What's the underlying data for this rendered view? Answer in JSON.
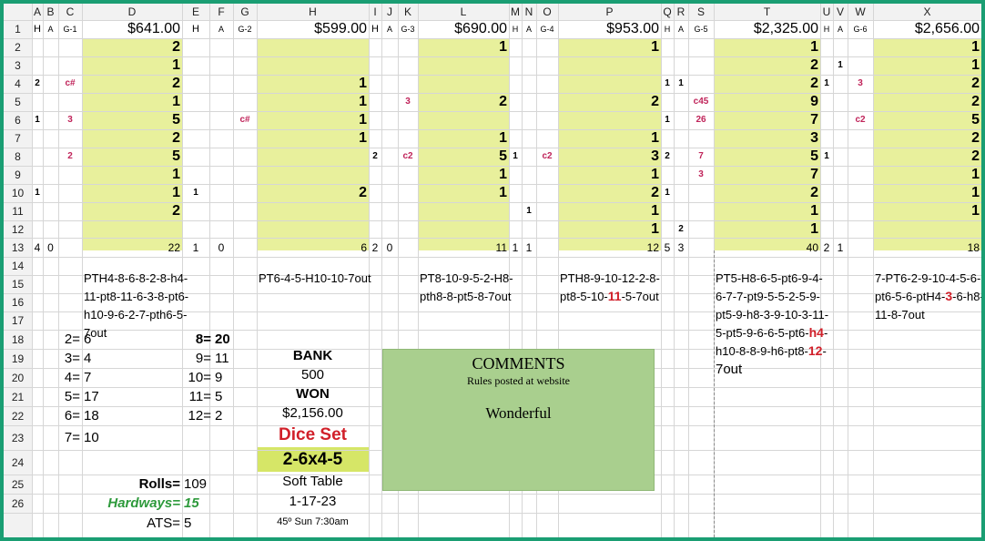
{
  "col_headers": [
    "A",
    "B",
    "C",
    "D",
    "E",
    "F",
    "G",
    "H",
    "I",
    "J",
    "K",
    "L",
    "M",
    "N",
    "O",
    "P",
    "Q",
    "R",
    "S",
    "T",
    "U",
    "V",
    "W",
    "X"
  ],
  "row_numbers": [
    "1",
    "2",
    "3",
    "4",
    "5",
    "6",
    "7",
    "8",
    "9",
    "10",
    "11",
    "12",
    "13",
    "14",
    "15",
    "16",
    "17",
    "18",
    "19",
    "20",
    "21",
    "22",
    "23",
    "24",
    "25",
    "26"
  ],
  "row1": {
    "h": "H",
    "a": "A",
    "g1": "G-1",
    "d": "$641.00",
    "e": "H",
    "f": "A",
    "g": "G-2",
    "hcol": "$599.00",
    "i": "H",
    "j": "A",
    "k": "G-3",
    "l": "$690.00",
    "m": "H",
    "n": "A",
    "o": "G-4",
    "p": "$953.00",
    "q": "H",
    "r": "A",
    "s": "G-5",
    "t": "$2,325.00",
    "u": "H",
    "v": "A",
    "w": "G-6",
    "x": "$2,656.00"
  },
  "cells": {
    "A4": "2",
    "C4": "c#",
    "A6": "1",
    "C6": "3",
    "C8": "2",
    "A10": "1",
    "D2": "2",
    "D3": "1",
    "D4": "2",
    "D5": "1",
    "D6": "5",
    "D7": "2",
    "D8": "5",
    "D9": "1",
    "D10": "1",
    "D11": "2",
    "E10": "1",
    "G6": "c#",
    "H4": "1",
    "H5": "1",
    "H6": "1",
    "H7": "1",
    "H10": "2",
    "I8": "2",
    "K5": "3",
    "K8": "c2",
    "L2": "1",
    "L5": "2",
    "L7": "1",
    "L8": "5",
    "L9": "1",
    "L10": "1",
    "M8": "1",
    "N11": "1",
    "O8": "c2",
    "P2": "1",
    "P5": "2",
    "P7": "1",
    "P8": "3",
    "P9": "1",
    "P10": "2",
    "P11": "1",
    "P12": "1",
    "Q4": "1",
    "R4": "1",
    "Q6": "1",
    "Q8": "2",
    "Q10": "1",
    "R12": "2",
    "S5": "c45",
    "S6": "26",
    "S8": "7",
    "S9": "3",
    "T2": "1",
    "T3": "2",
    "T4": "2",
    "T5": "9",
    "T6": "7",
    "T7": "3",
    "T8": "5",
    "T9": "7",
    "T10": "2",
    "T11": "1",
    "T12": "1",
    "U4": "1",
    "U8": "1",
    "V3": "1",
    "W4": "3",
    "W6": "c2",
    "X2": "1",
    "X3": "1",
    "X4": "2",
    "X5": "2",
    "X6": "5",
    "X7": "2",
    "X8": "2",
    "X9": "1",
    "X10": "1",
    "X11": "1"
  },
  "row13": {
    "A": "4",
    "B": "0",
    "D": "22",
    "E": "1",
    "F": "0",
    "H": "6",
    "I": "2",
    "J": "0",
    "L": "11",
    "M": "1",
    "N": "1",
    "P": "12",
    "Q": "5",
    "R": "3",
    "T": "40",
    "U": "2",
    "V": "1",
    "X": "18"
  },
  "sequences": {
    "g1": [
      "PTH4-8-6-8-2-8-h4-",
      "11-pt8-11-6-3-8-pt6-",
      "h10-9-6-2-7-pth6-5-",
      "7out"
    ],
    "g2": [
      "PT6-4-5-H10-10-7out"
    ],
    "g3": [
      "PT8-10-9-5-2-H8-",
      "pth8-8-pt5-8-7out"
    ],
    "g4_l1": "PTH8-9-10-12-2-8-",
    "g4_l2a": "pt8-5-10-",
    "g4_l2b": "11",
    "g4_l2c": "-5-7out",
    "g5_l1": "PT5-H8-6-5-pt6-9-4-",
    "g5_l2": "6-7-7-pt9-5-5-2-5-9-",
    "g5_l3": "pt5-9-h8-3-9-10-3-11-",
    "g5_l4a": "5-pt5-9-6-6-5-pt6-",
    "g5_l4b": "h4",
    "g5_l4c": "-",
    "g5_l5a": "h10-8-8-9-h6-pt8-",
    "g5_l5b": "12",
    "g5_l5c": "-",
    "g5_l6": "7out",
    "g6_l1": "7-PT6-2-9-10-4-5-6-",
    "g6_l2a": "pt6-5-6-ptH4-",
    "g6_l2b": "3",
    "g6_l2c": "-6-h8-",
    "g6_l3": "11-8-7out"
  },
  "stats": {
    "left": [
      {
        "k": "2=",
        "v": "6"
      },
      {
        "k": "3=",
        "v": "4"
      },
      {
        "k": "4=",
        "v": "7"
      },
      {
        "k": "5=",
        "v": "17"
      },
      {
        "k": "6=",
        "v": "18"
      },
      {
        "k": "7=",
        "v": "10"
      }
    ],
    "right": [
      {
        "k": "8=",
        "v": "20"
      },
      {
        "k": "9=",
        "v": "11"
      },
      {
        "k": "10=",
        "v": "9"
      },
      {
        "k": "11=",
        "v": "5"
      },
      {
        "k": "12=",
        "v": "2"
      }
    ]
  },
  "summary": {
    "rolls_label": "Rolls=",
    "rolls": "109",
    "hardways_label": "Hardways=",
    "hardways": "15",
    "ats_label": "ATS=",
    "ats": "5"
  },
  "bank": {
    "bank_label": "BANK",
    "bank_value": "500",
    "won_label": "WON",
    "won_value": "$2,156.00",
    "dice_set_label": "Dice Set",
    "dice_set_value": "2-6x4-5",
    "table": "Soft Table",
    "date": "1-17-23",
    "weather": "45º  Sun 7:30am"
  },
  "comments": {
    "title": "COMMENTS",
    "subtitle": "Rules posted at website",
    "body": "Wonderful"
  },
  "colors": {
    "frame": "#1a9e73",
    "highlight": "#e8f09c",
    "dice_set_bg": "#d6e667",
    "comments_bg": "#a9cf8e",
    "red": "#d1202a",
    "magenta": "#c0245a",
    "green_text": "#2e9a3c"
  }
}
